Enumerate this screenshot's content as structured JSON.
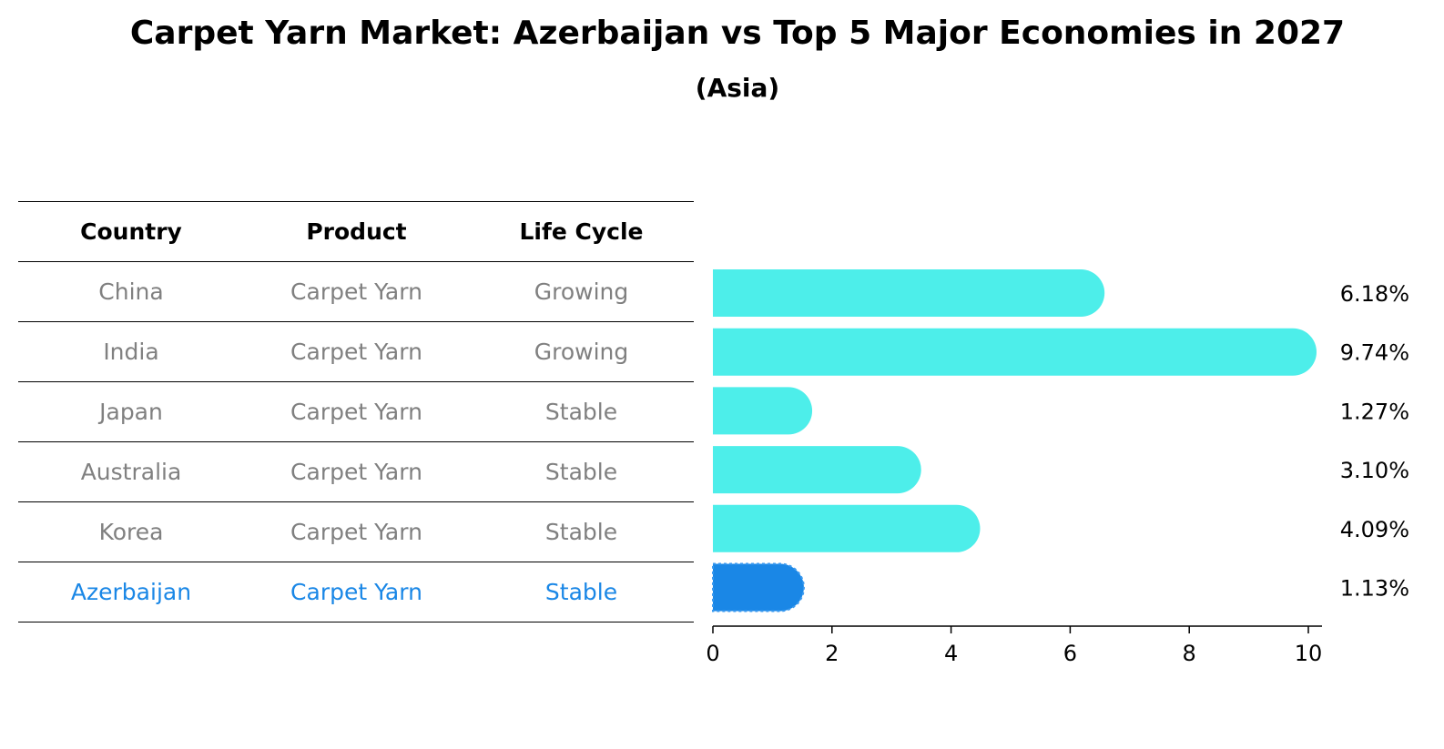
{
  "title": "Carpet Yarn Market: Azerbaijan vs Top 5 Major Economies in 2027",
  "subtitle": "(Asia)",
  "table": {
    "headers": [
      "Country",
      "Product",
      "Life Cycle"
    ],
    "rows": [
      {
        "country": "China",
        "product": "Carpet Yarn",
        "life_cycle": "Growing"
      },
      {
        "country": "India",
        "product": "Carpet Yarn",
        "life_cycle": "Growing"
      },
      {
        "country": "Japan",
        "product": "Carpet Yarn",
        "life_cycle": "Stable"
      },
      {
        "country": "Australia",
        "product": "Carpet Yarn",
        "life_cycle": "Stable"
      },
      {
        "country": "Korea",
        "product": "Carpet Yarn",
        "life_cycle": "Stable"
      },
      {
        "country": "Azerbaijan",
        "product": "Carpet Yarn",
        "life_cycle": "Stable"
      }
    ]
  },
  "colors": {
    "bar": "#4deeea",
    "highlight": "#1a87e6",
    "muted_text": "#808080"
  },
  "chart_data": {
    "type": "bar",
    "orientation": "horizontal",
    "categories": [
      "China",
      "India",
      "Japan",
      "Australia",
      "Korea",
      "Azerbaijan"
    ],
    "values": [
      6.18,
      9.74,
      1.27,
      3.1,
      4.09,
      1.13
    ],
    "value_labels": [
      "6.18%",
      "9.74%",
      "1.27%",
      "3.10%",
      "4.09%",
      "1.13%"
    ],
    "highlight": "Azerbaijan",
    "xlim": [
      0,
      10
    ],
    "xticks": [
      0,
      2,
      4,
      6,
      8,
      10
    ],
    "grid": false
  }
}
